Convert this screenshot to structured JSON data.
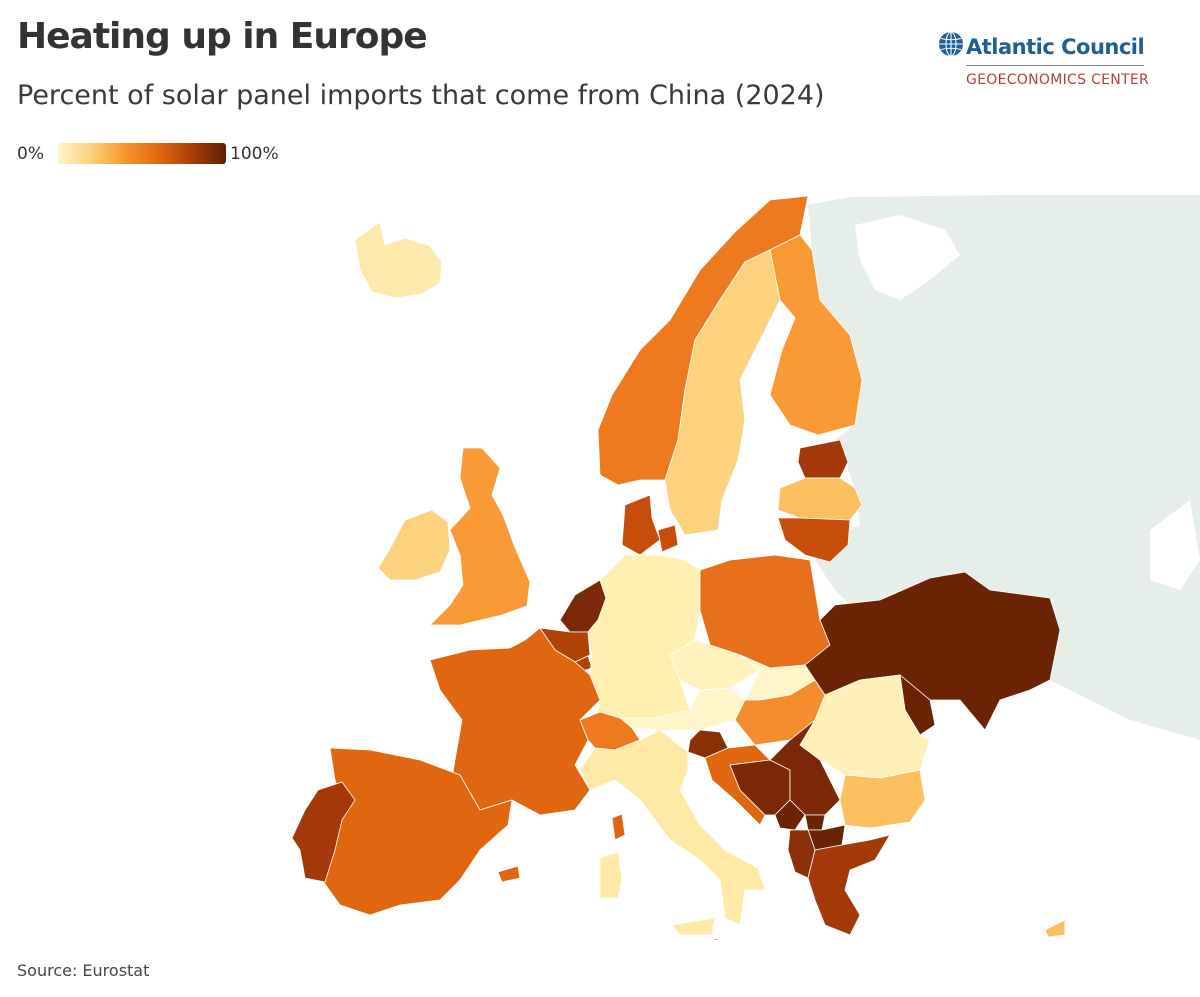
{
  "header": {
    "title": "Heating up in Europe",
    "subtitle": "Percent of solar panel imports that come from China (2024)"
  },
  "legend": {
    "min_label": "0%",
    "max_label": "100%",
    "gradient": [
      "#fff5c8",
      "#fdd07a",
      "#f7962f",
      "#e06710",
      "#a83e08",
      "#5e2004"
    ]
  },
  "logo": {
    "name": "Atlantic Council",
    "center": "GEOECONOMICS CENTER",
    "name_color": "#1d5f95",
    "center_color": "#b1403e"
  },
  "map": {
    "background_land_color": "#e6eeea",
    "countries": [
      {
        "name": "Iceland",
        "color": "#fde9ab"
      },
      {
        "name": "Ireland",
        "color": "#fdd27f"
      },
      {
        "name": "United Kingdom",
        "color": "#f99a37"
      },
      {
        "name": "Norway",
        "color": "#ee7a1f"
      },
      {
        "name": "Sweden",
        "color": "#fdd27f"
      },
      {
        "name": "Finland",
        "color": "#f99a37"
      },
      {
        "name": "Estonia",
        "color": "#a43808"
      },
      {
        "name": "Latvia",
        "color": "#fcbf5e"
      },
      {
        "name": "Lithuania",
        "color": "#c74d0b"
      },
      {
        "name": "Denmark",
        "color": "#c74d0b"
      },
      {
        "name": "Netherlands",
        "color": "#7a2805"
      },
      {
        "name": "Belgium",
        "color": "#b14206"
      },
      {
        "name": "Luxembourg",
        "color": "#b14206"
      },
      {
        "name": "France",
        "color": "#e06710"
      },
      {
        "name": "Germany",
        "color": "#ffefb0"
      },
      {
        "name": "Poland",
        "color": "#e8701a"
      },
      {
        "name": "Czechia",
        "color": "#fff2bc"
      },
      {
        "name": "Austria",
        "color": "#fff5c8"
      },
      {
        "name": "Switzerland",
        "color": "#ee7a1f"
      },
      {
        "name": "Slovakia",
        "color": "#fff5c8"
      },
      {
        "name": "Hungary",
        "color": "#f58c2e"
      },
      {
        "name": "Ukraine",
        "color": "#6a2404"
      },
      {
        "name": "Moldova",
        "color": "#6a2404"
      },
      {
        "name": "Romania",
        "color": "#fff0b8"
      },
      {
        "name": "Bulgaria",
        "color": "#fcbf5e"
      },
      {
        "name": "Slovenia",
        "color": "#8a3006"
      },
      {
        "name": "Croatia",
        "color": "#e06710"
      },
      {
        "name": "Bosnia and Herzegovina",
        "color": "#7a2805"
      },
      {
        "name": "Serbia",
        "color": "#7a2805"
      },
      {
        "name": "Montenegro",
        "color": "#6a2404"
      },
      {
        "name": "Kosovo",
        "color": "#6a2404"
      },
      {
        "name": "North Macedonia",
        "color": "#6a2404"
      },
      {
        "name": "Albania",
        "color": "#8a3006"
      },
      {
        "name": "Greece",
        "color": "#a43808"
      },
      {
        "name": "Italy",
        "color": "#ffe9a6"
      },
      {
        "name": "Spain",
        "color": "#e06710"
      },
      {
        "name": "Portugal",
        "color": "#a43808"
      },
      {
        "name": "Cyprus",
        "color": "#fcbf5e"
      },
      {
        "name": "Malta",
        "color": "#f4a14f"
      }
    ]
  },
  "source": "Source: Eurostat"
}
